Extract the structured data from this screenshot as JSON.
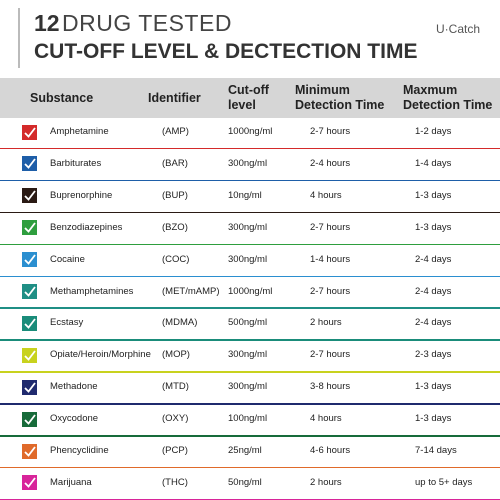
{
  "header": {
    "title_number": "12",
    "title": "DRUG TESTED",
    "subtitle": "CUT-OFF LEVEL & DECTECTION TIME",
    "brand": "U·Catch"
  },
  "table": {
    "columns": [
      "Substance",
      "Identifier",
      "Cut-off level",
      "Minimum Detection Time",
      "Maxmum Detection Time"
    ],
    "rows": [
      {
        "color": "#d42a2a",
        "cells": [
          "Amphetamine",
          "(AMP)",
          "1000ng/ml",
          "2-7 hours",
          "1-2 days"
        ]
      },
      {
        "color": "#1e5ea8",
        "cells": [
          "Barbiturates",
          "(BAR)",
          "300ng/ml",
          "2-4 hours",
          "1-4 days"
        ]
      },
      {
        "color": "#2a1a14",
        "cells": [
          "Buprenorphine",
          "(BUP)",
          "10ng/ml",
          "4 hours",
          "1-3 days"
        ]
      },
      {
        "color": "#2e9e3e",
        "cells": [
          "Benzodiazepines",
          "(BZO)",
          "300ng/ml",
          "2-7 hours",
          "1-3 days"
        ]
      },
      {
        "color": "#2b8fd0",
        "cells": [
          "Cocaine",
          "(COC)",
          "300ng/ml",
          "1-4 hours",
          "2-4 days"
        ]
      },
      {
        "color": "#1f8f85",
        "cells": [
          "Methamphetamines",
          "(MET/mAMP)",
          "1000ng/ml",
          "2-7 hours",
          "2-4 days"
        ]
      },
      {
        "color": "#1a8c7a",
        "cells": [
          "Ecstasy",
          "(MDMA)",
          "500ng/ml",
          "2 hours",
          "2-4 days"
        ]
      },
      {
        "color": "#c8d21e",
        "cells": [
          "Opiate/Heroin/Morphine",
          "(MOP)",
          "300ng/ml",
          "2-7 hours",
          "2-3 days"
        ]
      },
      {
        "color": "#1f2a6e",
        "cells": [
          "Methadone",
          "(MTD)",
          "300ng/ml",
          "3-8 hours",
          "1-3 days"
        ]
      },
      {
        "color": "#176b3a",
        "cells": [
          "Oxycodone",
          "(OXY)",
          "100ng/ml",
          "4 hours",
          "1-3 days"
        ]
      },
      {
        "color": "#e06a2a",
        "cells": [
          "Phencyclidine",
          "(PCP)",
          "25ng/ml",
          "4-6 hours",
          "7-14 days"
        ]
      },
      {
        "color": "#d8249a",
        "cells": [
          "Marijuana",
          "(THC)",
          "50ng/ml",
          "2 hours",
          "up to 5+ days"
        ]
      }
    ]
  }
}
